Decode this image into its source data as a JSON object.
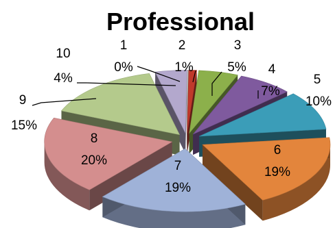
{
  "chart_data": {
    "type": "pie",
    "style": "3d-exploded",
    "title": "Professional",
    "categories": [
      "1",
      "2",
      "3",
      "4",
      "5",
      "6",
      "7",
      "8",
      "9",
      "10"
    ],
    "values": [
      0,
      1,
      5,
      7,
      10,
      19,
      19,
      20,
      15,
      4
    ],
    "percent_labels": [
      "0%",
      "1%",
      "5%",
      "7%",
      "10%",
      "19%",
      "19%",
      "20%",
      "15%",
      "4%"
    ],
    "colors": [
      "#bfbfbf",
      "#c0392b",
      "#8cb04b",
      "#7f5a9e",
      "#3b9db8",
      "#e3853c",
      "#9fb2d8",
      "#d48e8e",
      "#b4ca8c",
      "#b3a8cd"
    ]
  }
}
